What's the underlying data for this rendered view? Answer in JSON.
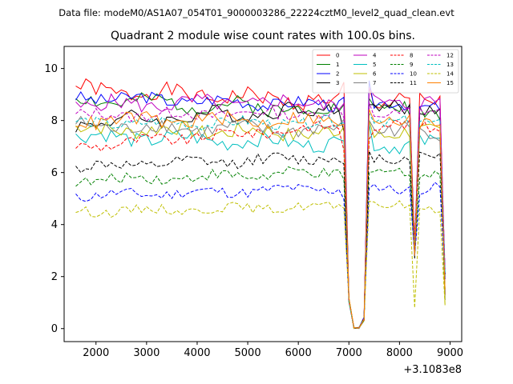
{
  "suptitle": "Data file: modeM0/AS1A07_054T01_9000003286_22224cztM0_level2_quad_clean.evt",
  "chart_data": {
    "type": "line",
    "title": "Quadrant 2 module wise count rates with 100.0s bins.",
    "x_offset_label": "+3.1083e8",
    "x_ticks": [
      2000,
      3000,
      4000,
      5000,
      6000,
      7000,
      8000,
      9000
    ],
    "y_ticks": [
      0,
      2,
      4,
      6,
      8,
      10
    ],
    "xlim": [
      1370,
      9230
    ],
    "ylim": [
      -0.5,
      10.85
    ],
    "xlabel": "",
    "ylabel": "",
    "grid": false,
    "legend_position": "top-right",
    "legend_columns": 4,
    "x": [
      1600,
      1700,
      1800,
      1900,
      2000,
      2100,
      2200,
      2300,
      2400,
      2500,
      2600,
      2700,
      2800,
      2900,
      3000,
      3100,
      3200,
      3300,
      3400,
      3500,
      3600,
      3700,
      3800,
      3900,
      4000,
      4100,
      4200,
      4300,
      4400,
      4500,
      4600,
      4700,
      4800,
      4900,
      5000,
      5100,
      5200,
      5300,
      5400,
      5500,
      5600,
      5700,
      5800,
      5900,
      6000,
      6100,
      6200,
      6300,
      6400,
      6500,
      6600,
      6700,
      6800,
      6900,
      7000,
      7100,
      7200,
      7300,
      7400,
      7500,
      7600,
      7700,
      7800,
      7900,
      8000,
      8100,
      8200,
      8300,
      8400,
      8500,
      8600,
      8700,
      8800,
      8900
    ],
    "series": [
      {
        "name": "0",
        "color": "#ff0000",
        "dash": "solid",
        "base": 9.2,
        "end": 8.7,
        "dip": 2.8,
        "low": 3.0,
        "amp": 0.32,
        "seed": 1
      },
      {
        "name": "1",
        "color": "#008000",
        "dash": "solid",
        "base": 8.8,
        "end": 8.4,
        "dip": 3.5,
        "low": 3.0,
        "amp": 0.3,
        "seed": 2
      },
      {
        "name": "2",
        "color": "#0000ff",
        "dash": "solid",
        "base": 8.9,
        "end": 8.6,
        "dip": 3.6,
        "low": 3.0,
        "amp": 0.25,
        "seed": 3
      },
      {
        "name": "3",
        "color": "#000000",
        "dash": "solid",
        "base": 7.9,
        "end": 8.5,
        "dip": 2.6,
        "low": 2.7,
        "amp": 0.3,
        "seed": 4
      },
      {
        "name": "4",
        "color": "#bf00bf",
        "dash": "solid",
        "base": 8.6,
        "end": 8.7,
        "dip": 3.6,
        "low": 3.0,
        "amp": 0.3,
        "seed": 5
      },
      {
        "name": "5",
        "color": "#00bfbf",
        "dash": "solid",
        "base": 7.4,
        "end": 7.1,
        "dip": 3.0,
        "low": 2.8,
        "amp": 0.3,
        "seed": 6
      },
      {
        "name": "6",
        "color": "#bfbf00",
        "dash": "solid",
        "base": 7.7,
        "end": 7.5,
        "dip": 2.4,
        "low": 2.9,
        "amp": 0.3,
        "seed": 7
      },
      {
        "name": "7",
        "color": "#808080",
        "dash": "solid",
        "base": 7.8,
        "end": 7.6,
        "dip": 3.0,
        "low": 2.8,
        "amp": 0.3,
        "seed": 8
      },
      {
        "name": "8",
        "color": "#ff0000",
        "dash": "dashed",
        "base": 7.0,
        "end": 7.8,
        "dip": 3.4,
        "low": 3.5,
        "amp": 0.22,
        "seed": 9
      },
      {
        "name": "9",
        "color": "#008000",
        "dash": "dashed",
        "base": 5.7,
        "end": 6.0,
        "dip": 3.0,
        "low": 2.8,
        "amp": 0.22,
        "seed": 10
      },
      {
        "name": "10",
        "color": "#0000ff",
        "dash": "dashed",
        "base": 5.1,
        "end": 5.4,
        "dip": 3.4,
        "low": 2.8,
        "amp": 0.2,
        "seed": 11
      },
      {
        "name": "11",
        "color": "#000000",
        "dash": "dashed",
        "base": 6.2,
        "end": 6.6,
        "dip": 3.6,
        "low": 3.0,
        "amp": 0.22,
        "seed": 12
      },
      {
        "name": "12",
        "color": "#bf00bf",
        "dash": "dashed",
        "base": 8.2,
        "end": 8.3,
        "dip": 3.8,
        "low": 3.2,
        "amp": 0.22,
        "seed": 13
      },
      {
        "name": "13",
        "color": "#00bfbf",
        "dash": "dashed",
        "base": 7.9,
        "end": 7.9,
        "dip": 3.6,
        "low": 3.0,
        "amp": 0.22,
        "seed": 14
      },
      {
        "name": "14",
        "color": "#bfbf00",
        "dash": "dashed",
        "base": 4.5,
        "end": 4.7,
        "dip": 2.4,
        "low": 0.8,
        "amp": 0.18,
        "seed": 15
      },
      {
        "name": "15",
        "color": "#ff8000",
        "dash": "solid",
        "base": 8.0,
        "end": 8.0,
        "dip": 3.0,
        "low": 2.8,
        "amp": 0.28,
        "seed": 16
      }
    ]
  }
}
